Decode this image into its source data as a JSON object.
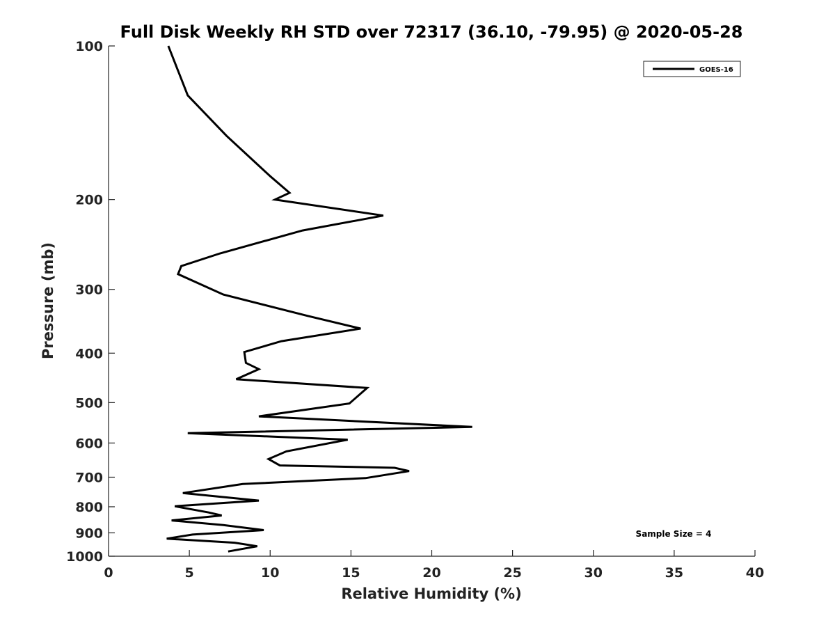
{
  "chart_data": {
    "type": "line",
    "title": "Full Disk Weekly RH STD over 72317 (36.10, -79.95) @ 2020-05-28",
    "xlabel": "Relative Humidity (%)",
    "ylabel": "Pressure (mb)",
    "xlim": [
      0,
      40
    ],
    "ylim": [
      100,
      1000
    ],
    "y_scale": "log",
    "y_inverted": true,
    "xticks": [
      0,
      5,
      10,
      15,
      20,
      25,
      30,
      35,
      40
    ],
    "yticks": [
      100,
      200,
      300,
      400,
      500,
      600,
      700,
      800,
      900,
      1000
    ],
    "grid": false,
    "legend_position": "top-right",
    "annotation": "Sample Size = 4",
    "series": [
      {
        "name": "GOES-16",
        "color": "#000000",
        "points": [
          [
            3.7,
            100
          ],
          [
            4.9,
            125
          ],
          [
            7.3,
            150
          ],
          [
            10.0,
            180
          ],
          [
            11.2,
            194
          ],
          [
            10.3,
            200
          ],
          [
            17.0,
            215
          ],
          [
            12.0,
            230
          ],
          [
            6.9,
            255
          ],
          [
            4.5,
            270
          ],
          [
            4.3,
            280
          ],
          [
            7.1,
            307
          ],
          [
            12.3,
            338
          ],
          [
            15.6,
            358
          ],
          [
            10.7,
            379
          ],
          [
            8.4,
            398
          ],
          [
            8.5,
            418
          ],
          [
            9.3,
            430
          ],
          [
            7.9,
            450
          ],
          [
            16.0,
            468
          ],
          [
            14.9,
            502
          ],
          [
            9.3,
            532
          ],
          [
            22.5,
            558
          ],
          [
            4.9,
            574
          ],
          [
            14.8,
            591
          ],
          [
            11.0,
            623
          ],
          [
            9.9,
            645
          ],
          [
            10.6,
            664
          ],
          [
            17.7,
            671
          ],
          [
            18.6,
            681
          ],
          [
            15.9,
            703
          ],
          [
            8.3,
            722
          ],
          [
            4.6,
            752
          ],
          [
            9.3,
            778
          ],
          [
            4.1,
            798
          ],
          [
            6.2,
            821
          ],
          [
            7.0,
            832
          ],
          [
            3.9,
            851
          ],
          [
            7.1,
            869
          ],
          [
            9.6,
            889
          ],
          [
            5.2,
            907
          ],
          [
            3.6,
            924
          ],
          [
            7.8,
            941
          ],
          [
            9.2,
            956
          ],
          [
            7.4,
            979
          ]
        ]
      }
    ]
  }
}
